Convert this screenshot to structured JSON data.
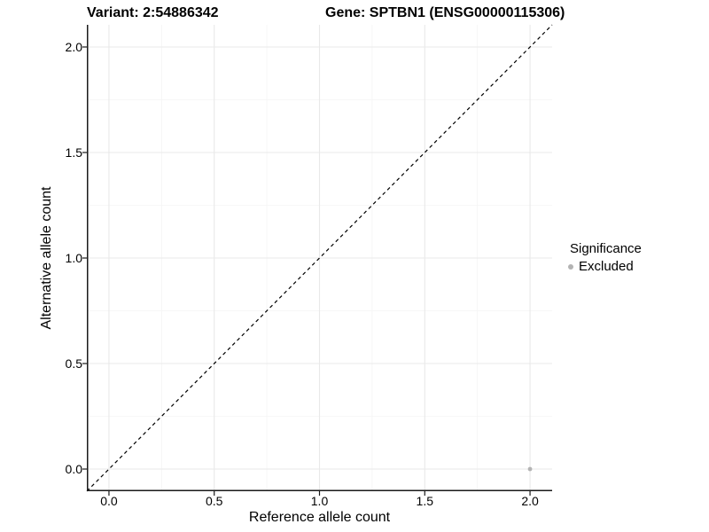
{
  "chart_data": {
    "type": "scatter",
    "titles": [
      "Variant: 2:54886342",
      "Gene: SPTBN1 (ENSG00000115306)"
    ],
    "xlabel": "Reference allele count",
    "ylabel": "Alternative allele count",
    "xlim": [
      -0.105,
      2.105
    ],
    "ylim": [
      -0.105,
      2.105
    ],
    "x_ticks": [
      0,
      0.5,
      1,
      1.5,
      2
    ],
    "x_tick_labels": [
      "0.0",
      "0.5",
      "1.0",
      "1.5",
      "2.0"
    ],
    "y_ticks": [
      0,
      0.5,
      1,
      1.5,
      2
    ],
    "y_tick_labels": [
      "0.0",
      "0.5",
      "1.0",
      "1.5",
      "2.0"
    ],
    "x_minor_ticks": [
      0.25,
      0.75,
      1.25,
      1.75
    ],
    "y_minor_ticks": [
      0.25,
      0.75,
      1.25,
      1.75
    ],
    "grid": true,
    "reference_line": {
      "kind": "identity y=x",
      "style": "dashed",
      "color": "#000000"
    },
    "series": [
      {
        "name": "Excluded",
        "color": "#b3b3b3",
        "points": [
          [
            2.0,
            0.0
          ]
        ],
        "point_radius": 2.4
      }
    ],
    "legend": {
      "title": "Significance",
      "position": "right",
      "items": [
        {
          "label": "Excluded",
          "color": "#b3b3b3",
          "marker": "dot"
        }
      ]
    },
    "colors": {
      "grid_major": "#e9e9e9",
      "grid_minor": "#f4f4f4",
      "axis": "#1a1a1a",
      "text": "#000000"
    }
  }
}
